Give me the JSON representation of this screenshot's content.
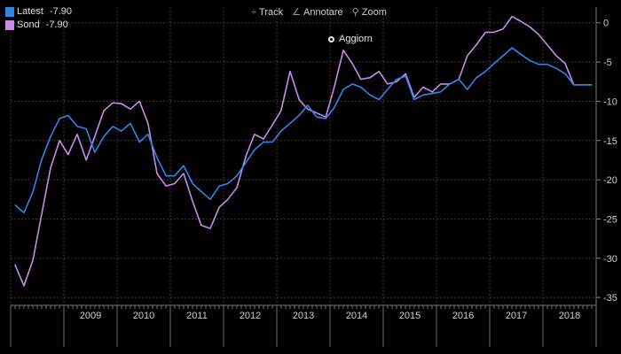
{
  "legend": [
    {
      "name": "Latest",
      "value": "-7.90",
      "color": "#2f86e8"
    },
    {
      "name": "Sond",
      "value": "-7.90",
      "color": "#c88be8"
    }
  ],
  "toolbar": {
    "track_label": "Track",
    "annotate_label": "Annotare",
    "zoom_label": "Zoom",
    "track_icon": "crosshair-icon",
    "annotate_icon": "pencil-icon",
    "zoom_icon": "magnifier-icon"
  },
  "refresh": {
    "label": "Aggiorn",
    "icon": "refresh-icon"
  },
  "chart_data": {
    "type": "line",
    "xlim": [
      2008.0,
      2019.0
    ],
    "ylim": [
      -36,
      2
    ],
    "yticks": [
      0,
      -5,
      -10,
      -15,
      -20,
      -25,
      -30,
      -35
    ],
    "x_tick_labels": [
      "2009",
      "2010",
      "2011",
      "2012",
      "2013",
      "2014",
      "2015",
      "2016",
      "2017",
      "2018"
    ],
    "grid": true,
    "y_axis_side": "right",
    "legend_position": "top-left",
    "series": [
      {
        "name": "Latest",
        "color": "#2f86e8",
        "x": [
          2008.08,
          2008.25,
          2008.42,
          2008.58,
          2008.75,
          2008.92,
          2009.08,
          2009.25,
          2009.42,
          2009.58,
          2009.75,
          2009.92,
          2010.08,
          2010.25,
          2010.42,
          2010.58,
          2010.75,
          2010.92,
          2011.08,
          2011.25,
          2011.42,
          2011.58,
          2011.75,
          2011.92,
          2012.08,
          2012.25,
          2012.42,
          2012.58,
          2012.75,
          2012.92,
          2013.08,
          2013.25,
          2013.42,
          2013.58,
          2013.75,
          2013.92,
          2014.08,
          2014.25,
          2014.42,
          2014.58,
          2014.75,
          2014.92,
          2015.08,
          2015.25,
          2015.42,
          2015.58,
          2015.75,
          2015.92,
          2016.08,
          2016.25,
          2016.42,
          2016.58,
          2016.75,
          2016.92,
          2017.08,
          2017.25,
          2017.42,
          2017.58,
          2017.75,
          2017.92,
          2018.08,
          2018.25,
          2018.42,
          2018.58,
          2018.75,
          2018.92
        ],
        "values": [
          -23.2,
          -24.2,
          -21.5,
          -17.5,
          -14.5,
          -12.2,
          -11.8,
          -13.2,
          -13.5,
          -16.5,
          -14.5,
          -13.2,
          -13.8,
          -12.8,
          -15.2,
          -14.2,
          -17.2,
          -19.5,
          -19.5,
          -18.2,
          -20.5,
          -21.5,
          -22.5,
          -20.8,
          -20.5,
          -19.5,
          -17.8,
          -16.2,
          -15.2,
          -15.2,
          -13.8,
          -12.8,
          -11.8,
          -10.5,
          -12.0,
          -12.2,
          -10.8,
          -8.5,
          -7.8,
          -8.2,
          -9.2,
          -9.8,
          -8.5,
          -7.2,
          -6.8,
          -9.8,
          -9.2,
          -9.0,
          -8.8,
          -7.8,
          -7.2,
          -8.5,
          -7.0,
          -6.2,
          -5.2,
          -4.2,
          -3.2,
          -4.0,
          -4.8,
          -5.3,
          -5.3,
          -5.8,
          -6.5,
          -7.9,
          -7.9,
          -7.9
        ]
      },
      {
        "name": "Sond",
        "color": "#c88be8",
        "x": [
          2008.08,
          2008.25,
          2008.42,
          2008.58,
          2008.75,
          2008.92,
          2009.08,
          2009.25,
          2009.42,
          2009.58,
          2009.75,
          2009.92,
          2010.08,
          2010.25,
          2010.42,
          2010.58,
          2010.75,
          2010.92,
          2011.08,
          2011.25,
          2011.42,
          2011.58,
          2011.75,
          2011.92,
          2012.08,
          2012.25,
          2012.42,
          2012.58,
          2012.75,
          2012.92,
          2013.08,
          2013.25,
          2013.42,
          2013.58,
          2013.75,
          2013.92,
          2014.08,
          2014.25,
          2014.42,
          2014.58,
          2014.75,
          2014.92,
          2015.08,
          2015.25,
          2015.42,
          2015.58,
          2015.75,
          2015.92,
          2016.08,
          2016.25,
          2016.42,
          2016.58,
          2016.75,
          2016.92,
          2017.08,
          2017.25,
          2017.42,
          2017.58,
          2017.75,
          2017.92,
          2018.08,
          2018.25,
          2018.42,
          2018.58,
          2018.75,
          2018.92
        ],
        "values": [
          -30.8,
          -33.5,
          -30.2,
          -24.5,
          -18.5,
          -15.0,
          -16.8,
          -14.2,
          -17.5,
          -14.5,
          -11.2,
          -10.2,
          -10.3,
          -11.0,
          -10.0,
          -12.8,
          -19.2,
          -20.8,
          -20.5,
          -19.2,
          -22.8,
          -25.8,
          -26.2,
          -23.5,
          -22.5,
          -21.0,
          -17.0,
          -14.2,
          -14.8,
          -13.0,
          -11.2,
          -6.2,
          -9.8,
          -11.0,
          -11.5,
          -12.0,
          -8.2,
          -3.5,
          -5.2,
          -7.2,
          -7.0,
          -6.2,
          -7.8,
          -7.5,
          -6.5,
          -9.5,
          -8.2,
          -8.8,
          -7.8,
          -7.8,
          -7.2,
          -4.2,
          -2.8,
          -1.2,
          -1.2,
          -0.8,
          0.8,
          0.2,
          -0.5,
          -1.5,
          -2.8,
          -4.2,
          -5.2,
          -7.9,
          -7.9,
          -7.9
        ]
      }
    ]
  }
}
